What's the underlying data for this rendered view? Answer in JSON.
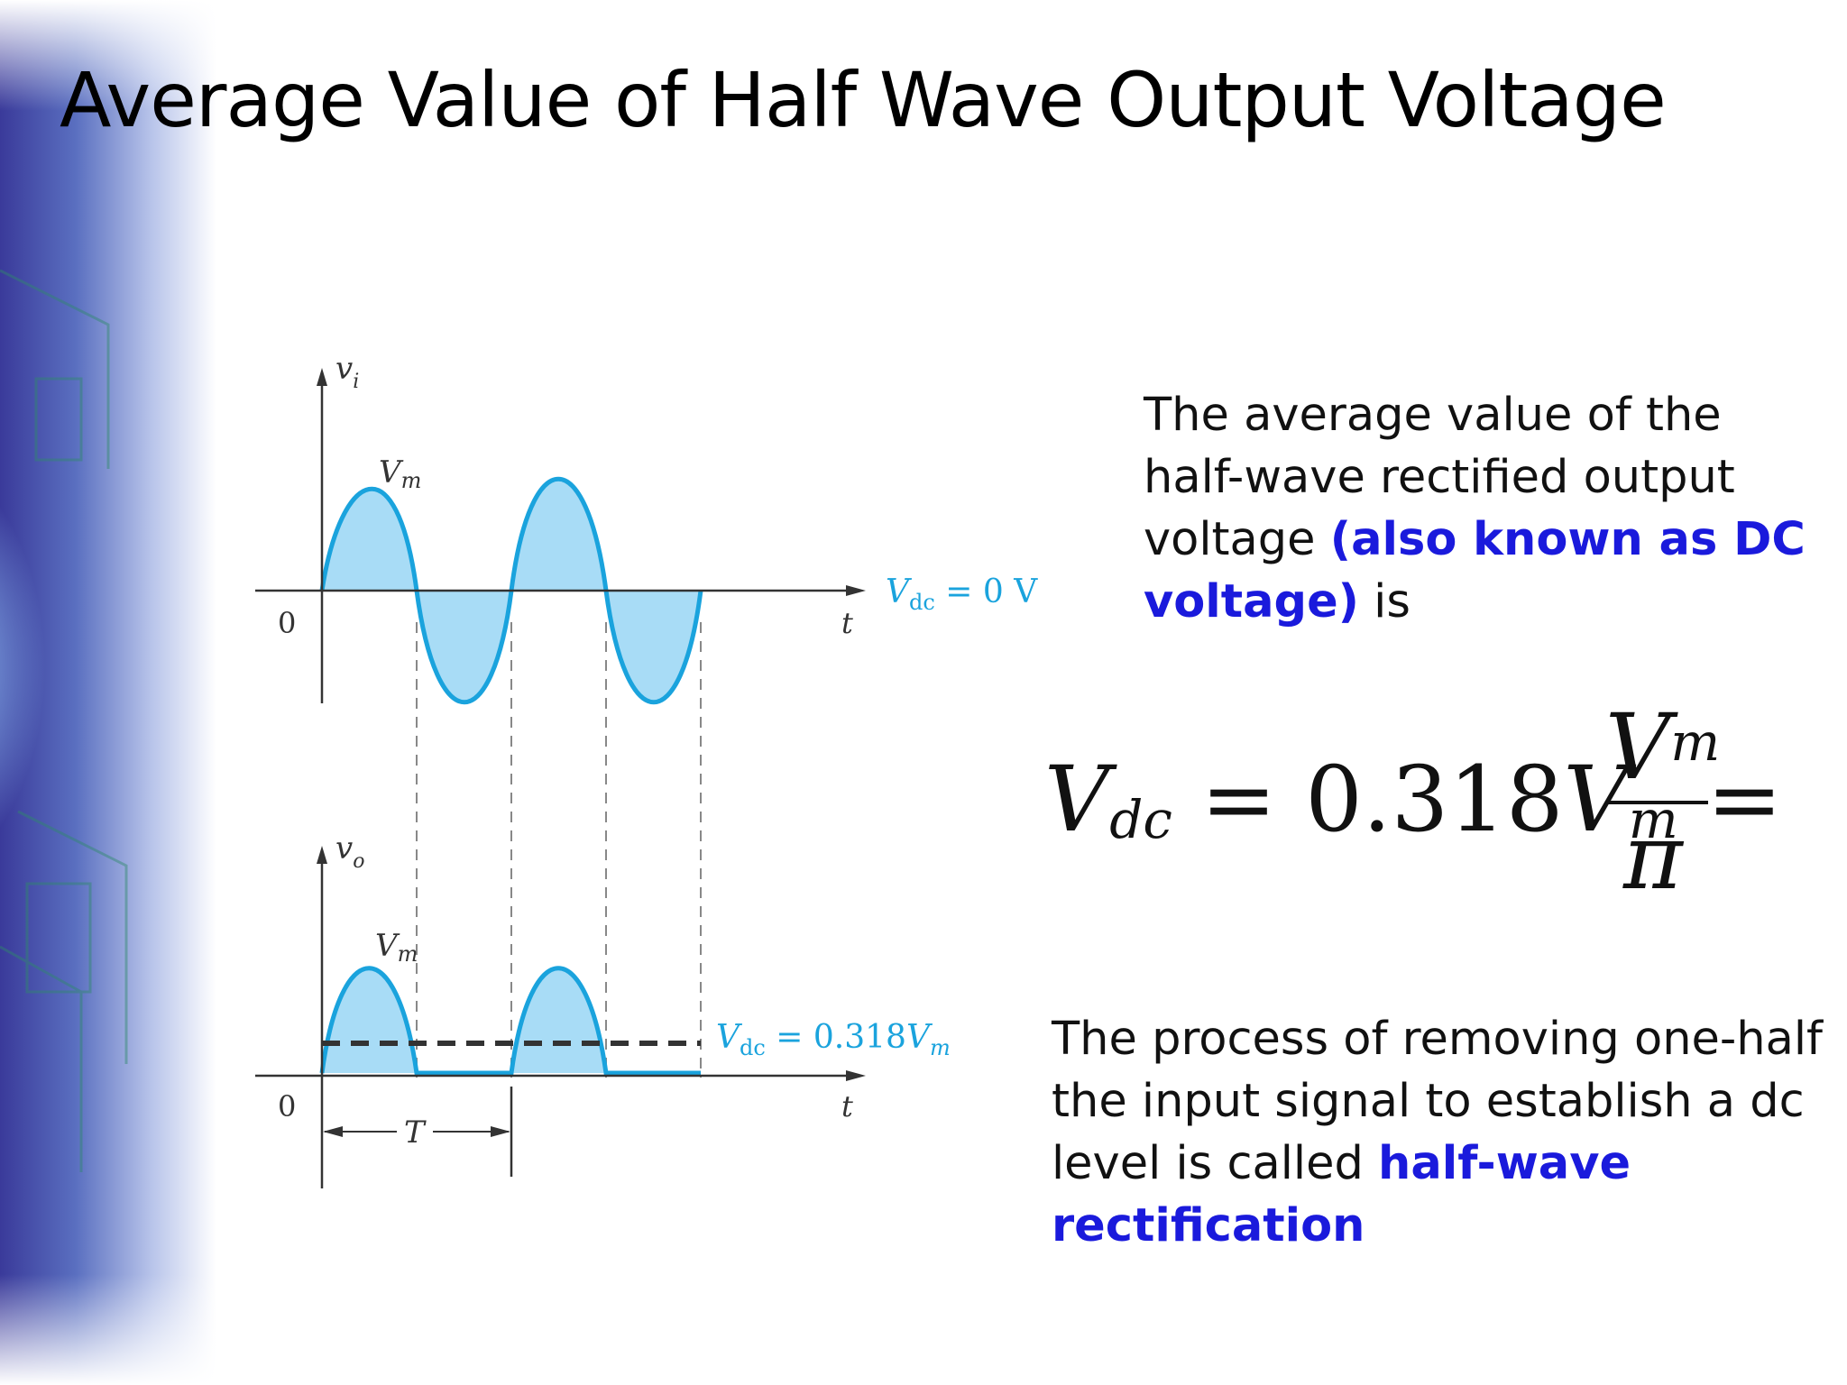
{
  "title": "Average Value of Half Wave Output Voltage",
  "figure": {
    "top_axis_label": "v",
    "top_axis_sub": "i",
    "bottom_axis_label": "v",
    "bottom_axis_sub": "o",
    "peak_label": "V",
    "peak_sub": "m",
    "origin": "0",
    "time_label": "t",
    "period_label": "T",
    "vdc_top": {
      "v": "V",
      "sub": "dc",
      "rest": " = 0 V"
    },
    "vdc_bottom": {
      "v": "V",
      "sub": "dc",
      "eq": " = 0.318",
      "v2": "V",
      "sub2": "m"
    },
    "colors": {
      "fill": "#a8dcf6",
      "stroke": "#1aa3dd",
      "axis": "#333333",
      "label": "#1aa3dd"
    }
  },
  "paragraph1": {
    "text_a": "The average value of the half-wave rectified output voltage ",
    "highlight": "(also known as DC voltage)",
    "text_b": " is"
  },
  "formula": {
    "v": "V",
    "dc": "dc",
    "eq1": " = 0.318",
    "v2": "V",
    "m": "m",
    "eq2": " =",
    "num_v": "V",
    "num_m": "m",
    "den": "π"
  },
  "paragraph2": {
    "text_a": "The process of removing one-half the input signal to establish a dc level is called ",
    "highlight": "half-wave rectification"
  },
  "colors": {
    "highlight": "#1a1adc"
  }
}
